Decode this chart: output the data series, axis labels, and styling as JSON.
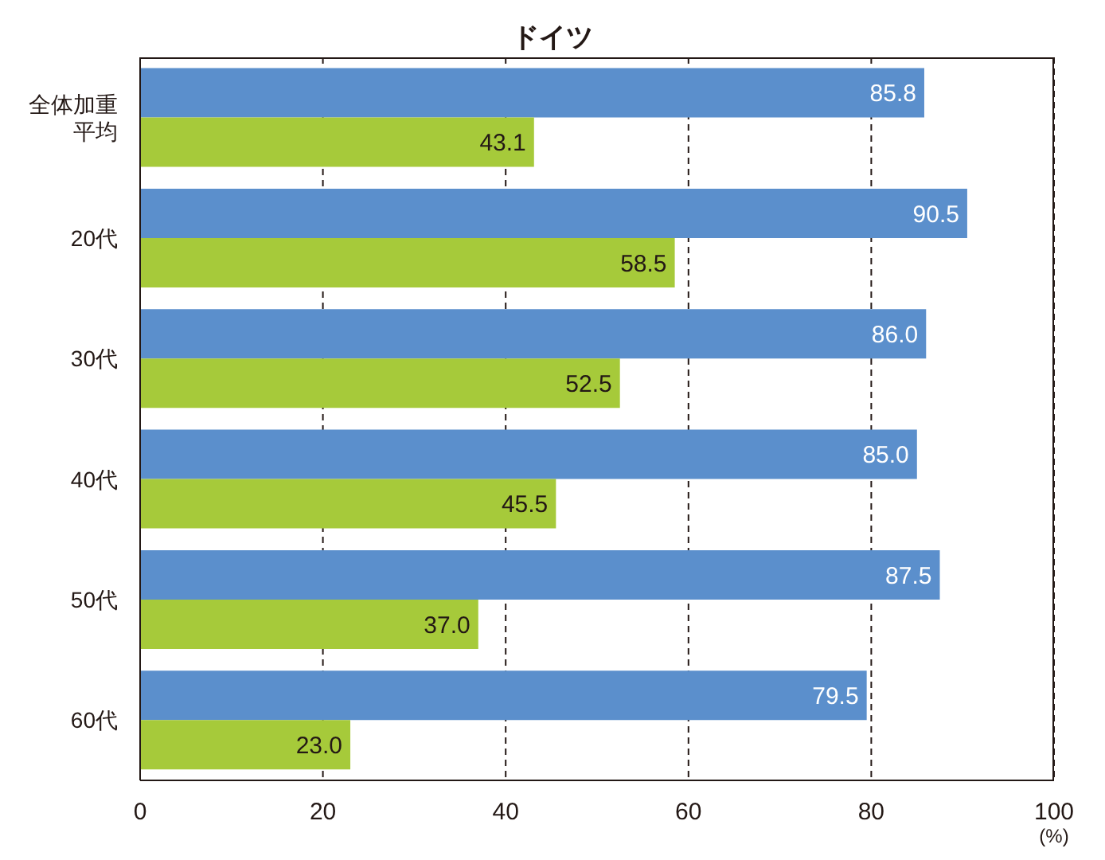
{
  "chart_data": {
    "type": "bar",
    "orientation": "horizontal",
    "title": "ドイツ",
    "xlabel": "(%)",
    "categories": [
      "全体加重平均",
      "20代",
      "30代",
      "40代",
      "50代",
      "60代"
    ],
    "series": [
      {
        "color": "#5b8fcc",
        "values": [
          85.8,
          90.5,
          86.0,
          85.0,
          87.5,
          79.5
        ],
        "value_labels": [
          "85.8",
          "90.5",
          "86.0",
          "85.0",
          "87.5",
          "79.5"
        ]
      },
      {
        "color": "#a6ca3a",
        "values": [
          43.1,
          58.5,
          52.5,
          45.5,
          37.0,
          23.0
        ],
        "value_labels": [
          "43.1",
          "58.5",
          "52.5",
          "45.5",
          "37.0",
          "23.0"
        ]
      }
    ],
    "xlim": [
      0,
      100
    ],
    "xticks": [
      0,
      20,
      40,
      60,
      80,
      100
    ],
    "grid": "x",
    "line_style": "dashed",
    "legend": false
  }
}
